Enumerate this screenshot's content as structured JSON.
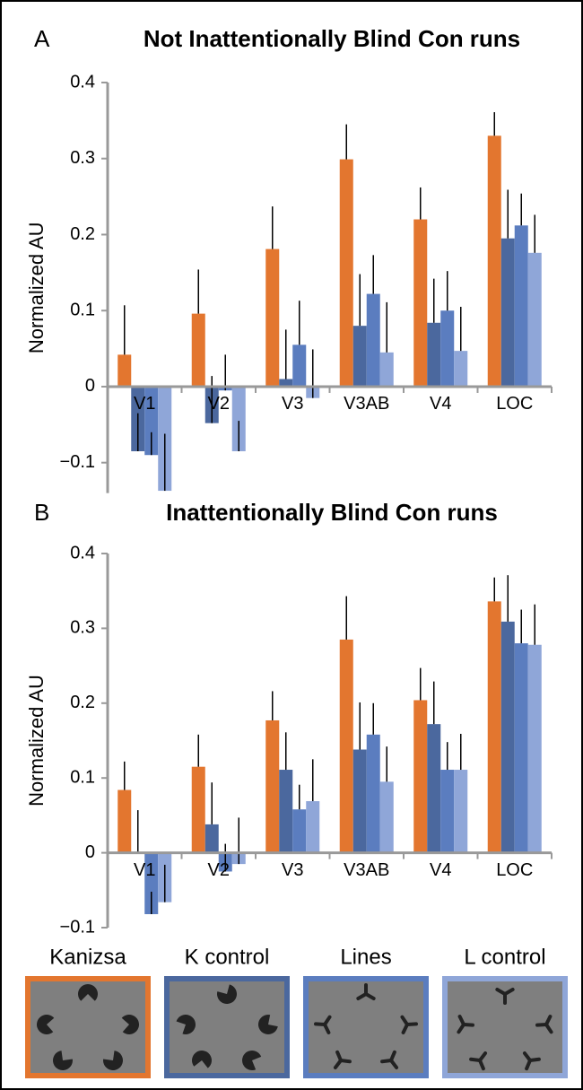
{
  "chart_data": [
    {
      "type": "bar",
      "label": "A",
      "title": "Not Inattentionally Blind Con runs",
      "y_label": "Normalized AU",
      "categories": [
        "V1",
        "V2",
        "V3",
        "V3AB",
        "V4",
        "LOC"
      ],
      "series": [
        {
          "name": "Kanizsa",
          "color": "#e3762f",
          "values": [
            0.042,
            0.096,
            0.181,
            0.299,
            0.22,
            0.33
          ],
          "errors": [
            0.065,
            0.058,
            0.056,
            0.046,
            0.042,
            0.031
          ]
        },
        {
          "name": "K control",
          "color": "#4b689e",
          "values": [
            -0.085,
            -0.048,
            0.01,
            0.08,
            0.084,
            0.195
          ],
          "errors": [
            0.05,
            0.062,
            0.065,
            0.068,
            0.058,
            0.064
          ]
        },
        {
          "name": "Lines",
          "color": "#5b7dbf",
          "values": [
            -0.09,
            -0.005,
            0.055,
            0.122,
            0.1,
            0.212
          ],
          "errors": [
            0.03,
            0.047,
            0.058,
            0.051,
            0.052,
            0.042
          ]
        },
        {
          "name": "L control",
          "color": "#8fa6d8",
          "values": [
            -0.137,
            -0.085,
            -0.015,
            0.045,
            0.047,
            0.176
          ],
          "errors": [
            0.075,
            0.04,
            0.064,
            0.066,
            0.058,
            0.05
          ]
        }
      ],
      "ylim": [
        -0.14,
        0.4
      ],
      "yticks": [
        {
          "value": -0.1,
          "label": "−0.1"
        },
        0,
        0.1,
        0.2,
        0.3,
        0.4
      ]
    },
    {
      "type": "bar",
      "label": "B",
      "title": "Inattentionally Blind Con runs",
      "y_label": "Normalized AU",
      "categories": [
        "V1",
        "V2",
        "V3",
        "V3AB",
        "V4",
        "LOC"
      ],
      "series": [
        {
          "color": "#e3762f",
          "values": [
            0.084,
            0.115,
            0.177,
            0.285,
            0.204,
            0.336
          ],
          "errors": [
            0.038,
            0.043,
            0.039,
            0.058,
            0.043,
            0.032
          ]
        },
        {
          "color": "#4b689e",
          "values": [
            0.0,
            0.038,
            0.111,
            0.138,
            0.172,
            0.309
          ],
          "errors": [
            0.057,
            0.056,
            0.05,
            0.063,
            0.057,
            0.062
          ]
        },
        {
          "color": "#5b7dbf",
          "values": [
            -0.082,
            -0.025,
            0.058,
            0.158,
            0.111,
            0.28
          ],
          "errors": [
            0.03,
            0.037,
            0.033,
            0.042,
            0.037,
            0.045
          ]
        },
        {
          "color": "#8fa6d8",
          "values": [
            -0.066,
            -0.015,
            0.069,
            0.095,
            0.111,
            0.278
          ],
          "errors": [
            0.05,
            0.062,
            0.056,
            0.047,
            0.048,
            0.054
          ]
        }
      ],
      "ylim": [
        -0.1,
        0.4
      ],
      "yticks": [
        {
          "value": -0.1,
          "label": "−0.1"
        },
        0,
        0.1,
        0.2,
        0.3,
        0.4
      ]
    }
  ]
}
